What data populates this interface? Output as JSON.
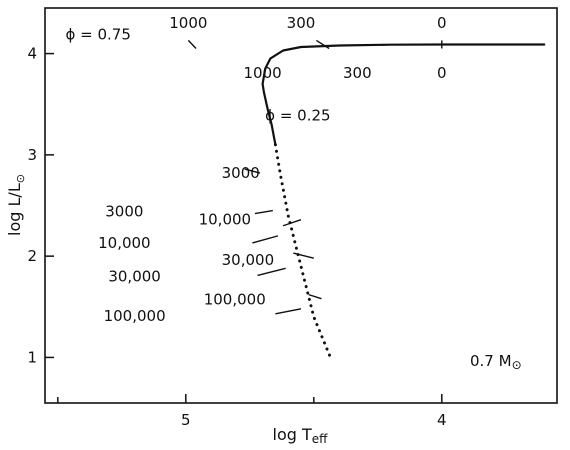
{
  "chart_data": {
    "type": "line",
    "xlabel_main": "log T",
    "xlabel_sub": "eff",
    "ylabel_main": "log L/L",
    "ylabel_sun": "⊙",
    "x_reversed": true,
    "xlim": [
      5.55,
      3.55
    ],
    "ylim": [
      0.55,
      4.45
    ],
    "x_ticks": [
      {
        "v": 5,
        "label": "5"
      },
      {
        "v": 4,
        "label": "4"
      }
    ],
    "x_minor_ticks": [
      5.5,
      4.5
    ],
    "y_ticks": [
      {
        "v": 1,
        "label": "1"
      },
      {
        "v": 2,
        "label": "2"
      },
      {
        "v": 3,
        "label": "3"
      },
      {
        "v": 4,
        "label": "4"
      }
    ],
    "series": [
      {
        "style": "solid",
        "points": [
          [
            3.6,
            4.09
          ],
          [
            3.8,
            4.09
          ],
          [
            4.0,
            4.09
          ],
          [
            4.2,
            4.088
          ],
          [
            4.4,
            4.08
          ],
          [
            4.55,
            4.065
          ],
          [
            4.62,
            4.03
          ],
          [
            4.67,
            3.95
          ],
          [
            4.69,
            3.85
          ],
          [
            4.7,
            3.7
          ],
          [
            4.695,
            3.62
          ],
          [
            4.68,
            3.45
          ],
          [
            4.665,
            3.3
          ],
          [
            4.65,
            3.1
          ]
        ]
      },
      {
        "style": "dotted",
        "points": [
          [
            4.65,
            3.1
          ],
          [
            4.63,
            2.8
          ],
          [
            4.6,
            2.4
          ],
          [
            4.56,
            2.0
          ],
          [
            4.5,
            1.4
          ],
          [
            4.43,
            0.97
          ]
        ]
      }
    ],
    "annotations": [
      {
        "text": "ϕ = 0.75",
        "x": 5.47,
        "y": 4.19,
        "anchor": "start"
      },
      {
        "text": "1000",
        "x": 4.99,
        "y": 4.3,
        "anchor": "middle"
      },
      {
        "text": "300",
        "x": 4.55,
        "y": 4.3,
        "anchor": "middle"
      },
      {
        "text": "0",
        "x": 4.0,
        "y": 4.3,
        "anchor": "middle"
      },
      {
        "text": "1000",
        "x": 4.7,
        "y": 3.81,
        "anchor": "middle"
      },
      {
        "text": "300",
        "x": 4.33,
        "y": 3.81,
        "anchor": "middle"
      },
      {
        "text": "0",
        "x": 4.0,
        "y": 3.81,
        "anchor": "middle"
      },
      {
        "text": "ϕ = 0.25",
        "x": 4.69,
        "y": 3.39,
        "anchor": "start"
      },
      {
        "text": "3000",
        "x": 4.86,
        "y": 2.82,
        "anchor": "start"
      },
      {
        "text": "3000",
        "x": 5.24,
        "y": 2.44,
        "anchor": "middle"
      },
      {
        "text": "10,000",
        "x": 4.95,
        "y": 2.36,
        "anchor": "start"
      },
      {
        "text": "10,000",
        "x": 5.24,
        "y": 2.13,
        "anchor": "middle"
      },
      {
        "text": "30,000",
        "x": 4.86,
        "y": 1.96,
        "anchor": "start"
      },
      {
        "text": "30,000",
        "x": 5.2,
        "y": 1.8,
        "anchor": "middle"
      },
      {
        "text": "100,000",
        "x": 4.93,
        "y": 1.57,
        "anchor": "start"
      },
      {
        "text": "100,000",
        "x": 5.2,
        "y": 1.41,
        "anchor": "middle"
      }
    ],
    "mass_label": "0.7 M",
    "mass_sun": "⊙",
    "tick_marks": [
      [
        [
          4.96,
          4.05
        ],
        [
          4.99,
          4.13
        ]
      ],
      [
        [
          4.44,
          4.05
        ],
        [
          4.49,
          4.13
        ]
      ],
      [
        [
          4.0,
          4.05
        ],
        [
          4.0,
          4.13
        ]
      ],
      [
        [
          4.77,
          2.86
        ],
        [
          4.71,
          2.82
        ]
      ],
      [
        [
          4.66,
          2.45
        ],
        [
          4.73,
          2.42
        ]
      ],
      [
        [
          4.62,
          2.3
        ],
        [
          4.55,
          2.36
        ]
      ],
      [
        [
          4.64,
          2.2
        ],
        [
          4.74,
          2.13
        ]
      ],
      [
        [
          4.58,
          2.03
        ],
        [
          4.5,
          1.98
        ]
      ],
      [
        [
          4.61,
          1.88
        ],
        [
          4.72,
          1.81
        ]
      ],
      [
        [
          4.52,
          1.62
        ],
        [
          4.47,
          1.58
        ]
      ],
      [
        [
          4.55,
          1.48
        ],
        [
          4.65,
          1.43
        ]
      ]
    ]
  }
}
